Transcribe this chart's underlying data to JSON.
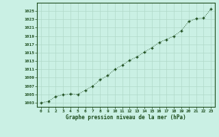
{
  "x": [
    0,
    1,
    2,
    3,
    4,
    5,
    6,
    7,
    8,
    9,
    10,
    11,
    12,
    13,
    14,
    15,
    16,
    17,
    18,
    19,
    20,
    21,
    22,
    23
  ],
  "y": [
    1003.0,
    1003.3,
    1004.5,
    1004.9,
    1005.1,
    1005.0,
    1006.0,
    1007.0,
    1008.5,
    1009.5,
    1011.0,
    1012.0,
    1013.2,
    1014.0,
    1015.2,
    1016.2,
    1017.5,
    1018.2,
    1019.0,
    1020.3,
    1022.5,
    1023.2,
    1023.3,
    1025.5
  ],
  "title": "Graphe pression niveau de la mer (hPa)",
  "background_color": "#caf0e4",
  "grid_color": "#b0d8c8",
  "line_color": "#1a4a1a",
  "marker_color": "#1a4a1a",
  "tick_label_color": "#1a4a1a",
  "xlabel_color": "#1a4a1a",
  "ylim": [
    1002,
    1027
  ],
  "yticks": [
    1003,
    1005,
    1007,
    1009,
    1011,
    1013,
    1015,
    1017,
    1019,
    1021,
    1023,
    1025
  ],
  "xlim": [
    -0.5,
    23.5
  ],
  "xticks": [
    0,
    1,
    2,
    3,
    4,
    5,
    6,
    7,
    8,
    9,
    10,
    11,
    12,
    13,
    14,
    15,
    16,
    17,
    18,
    19,
    20,
    21,
    22,
    23
  ],
  "xtick_labels": [
    "0",
    "1",
    "2",
    "3",
    "4",
    "5",
    "6",
    "7",
    "8",
    "9",
    "10",
    "11",
    "12",
    "13",
    "14",
    "15",
    "16",
    "17",
    "18",
    "19",
    "20",
    "21",
    "22",
    "23"
  ]
}
